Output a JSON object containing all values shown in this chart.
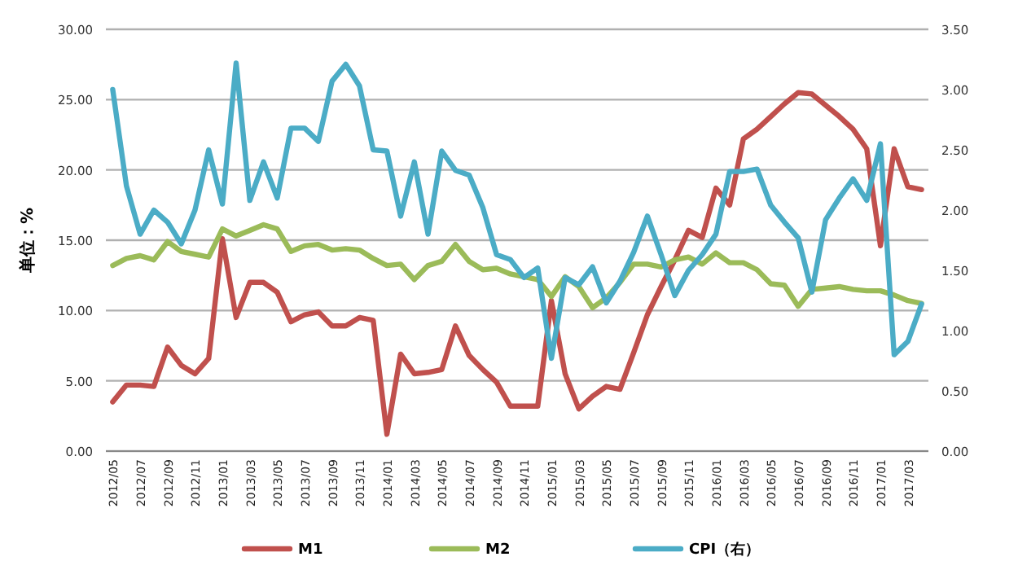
{
  "chart_data": {
    "type": "line",
    "ylabel": "单位：%",
    "legend": "bottom",
    "grid": "y",
    "categories": [
      "2012/05",
      null,
      "2012/07",
      null,
      "2012/09",
      null,
      "2012/11",
      null,
      "2013/01",
      null,
      "2013/03",
      null,
      "2013/05",
      null,
      "2013/07",
      null,
      "2013/09",
      null,
      "2013/11",
      null,
      "2014/01",
      null,
      "2014/03",
      null,
      "2014/05",
      null,
      "2014/07",
      null,
      "2014/09",
      null,
      "2014/11",
      null,
      "2015/01",
      null,
      "2015/03",
      null,
      "2015/05",
      null,
      "2015/07",
      null,
      "2015/09",
      null,
      "2015/11",
      null,
      "2016/01",
      null,
      "2016/03",
      null,
      "2016/05",
      null,
      "2016/07",
      null,
      "2016/09",
      null,
      "2016/11",
      null,
      "2017/01",
      null,
      "2017/03",
      null
    ],
    "ylim": [
      0,
      30
    ],
    "yticks": [
      {
        "value": 0,
        "label": "0.00"
      },
      {
        "value": 5,
        "label": "5.00"
      },
      {
        "value": 10,
        "label": "10.00"
      },
      {
        "value": 15,
        "label": "15.00"
      },
      {
        "value": 20,
        "label": "20.00"
      },
      {
        "value": 25,
        "label": "25.00"
      },
      {
        "value": 30,
        "label": "30.00"
      }
    ],
    "y2lim": [
      0,
      3.5
    ],
    "y2ticks": [
      {
        "value": 0,
        "label": "0.00"
      },
      {
        "value": 0.5,
        "label": "0.50"
      },
      {
        "value": 1,
        "label": "1.00"
      },
      {
        "value": 1.5,
        "label": "1.50"
      },
      {
        "value": 2,
        "label": "2.00"
      },
      {
        "value": 2.5,
        "label": "2.50"
      },
      {
        "value": 3,
        "label": "3.00"
      },
      {
        "value": 3.5,
        "label": "3.50"
      }
    ],
    "series": [
      {
        "name": "M1",
        "color": "#c0504d",
        "values": [
          3.5,
          4.7,
          4.7,
          4.6,
          7.4,
          6.1,
          5.5,
          6.6,
          15.1,
          9.5,
          12.0,
          12.0,
          11.3,
          9.2,
          9.7,
          9.9,
          8.9,
          8.9,
          9.5,
          9.3,
          1.2,
          6.9,
          5.5,
          5.6,
          5.8,
          8.9,
          6.8,
          5.8,
          4.9,
          3.2,
          3.2,
          3.2,
          10.7,
          5.5,
          3.0,
          3.9,
          4.6,
          4.4,
          7.0,
          9.7,
          11.7,
          13.6,
          15.7,
          15.2,
          18.7,
          17.5,
          22.2,
          22.9,
          23.8,
          24.7,
          25.5,
          25.4,
          24.6,
          23.8,
          22.9,
          21.5,
          14.6,
          21.5,
          18.8,
          18.6
        ]
      },
      {
        "name": "M2",
        "color": "#9bbb59",
        "values": [
          13.2,
          13.7,
          13.9,
          13.6,
          14.9,
          14.2,
          14.0,
          13.8,
          15.8,
          15.3,
          15.7,
          16.1,
          15.8,
          14.2,
          14.6,
          14.7,
          14.3,
          14.4,
          14.3,
          13.7,
          13.2,
          13.3,
          12.2,
          13.2,
          13.5,
          14.7,
          13.5,
          12.9,
          13.0,
          12.6,
          12.4,
          12.2,
          11.0,
          12.4,
          11.7,
          10.2,
          10.9,
          12.0,
          13.3,
          13.3,
          13.1,
          13.6,
          13.8,
          13.3,
          14.1,
          13.4,
          13.4,
          12.9,
          11.9,
          11.8,
          10.3,
          11.5,
          11.6,
          11.7,
          11.5,
          11.4,
          11.4,
          11.1,
          10.7,
          10.5
        ]
      },
      {
        "name": "CPI（右）",
        "color": "#4bacc6",
        "axis": "y2",
        "values": [
          3.0,
          2.2,
          1.8,
          2.0,
          1.9,
          1.72,
          2.0,
          2.5,
          2.05,
          3.22,
          2.08,
          2.4,
          2.1,
          2.68,
          2.68,
          2.57,
          3.07,
          3.21,
          3.03,
          2.5,
          2.49,
          1.95,
          2.4,
          1.8,
          2.49,
          2.33,
          2.29,
          2.02,
          1.63,
          1.59,
          1.44,
          1.52,
          0.77,
          1.44,
          1.38,
          1.53,
          1.23,
          1.41,
          1.65,
          1.95,
          1.63,
          1.29,
          1.5,
          1.63,
          1.8,
          2.32,
          2.32,
          2.34,
          2.04,
          1.9,
          1.77,
          1.32,
          1.92,
          2.1,
          2.26,
          2.08,
          2.55,
          0.8,
          0.91,
          1.22
        ]
      }
    ]
  }
}
